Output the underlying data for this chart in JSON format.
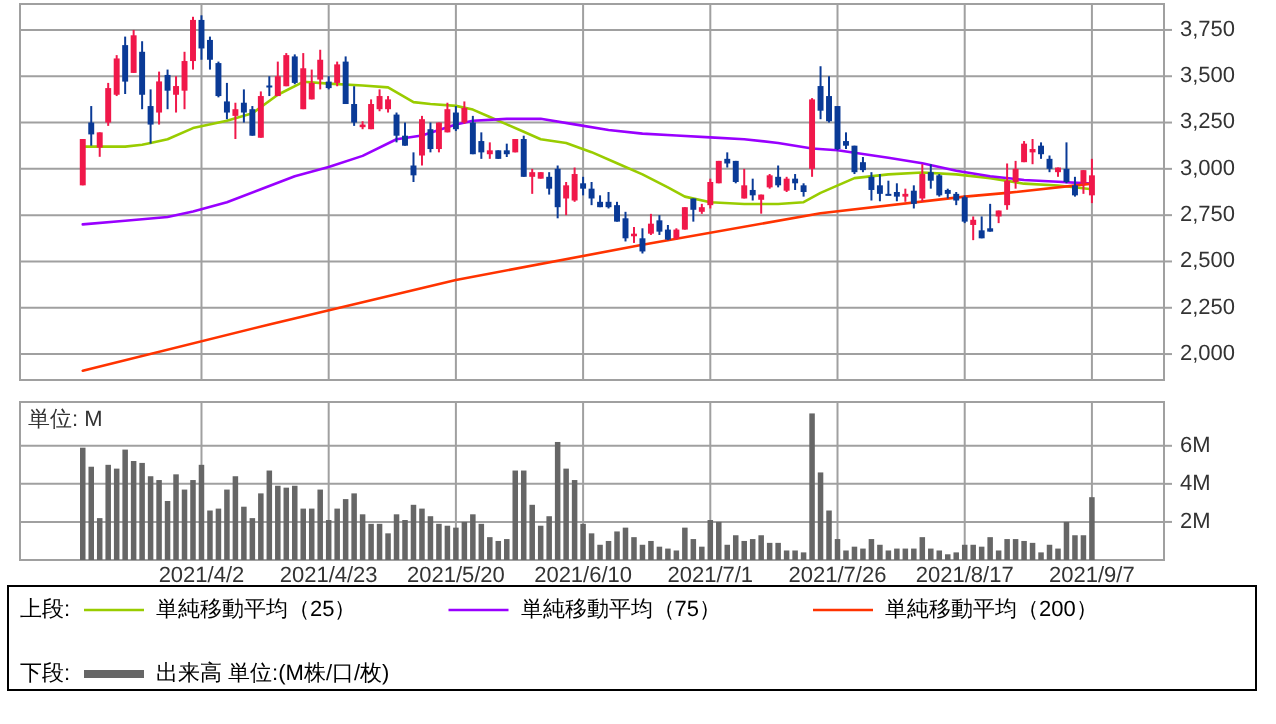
{
  "chart_data": [
    {
      "type": "candlestick",
      "legend": "bottom",
      "legend_title": "上段:",
      "grid": true,
      "tick_labels": "y",
      "categories": [
        null,
        null,
        null,
        null,
        null,
        null,
        null,
        null,
        null,
        null,
        null,
        null,
        null,
        null,
        "2021/4/2",
        null,
        null,
        null,
        null,
        null,
        null,
        null,
        null,
        null,
        null,
        null,
        null,
        null,
        null,
        "2021/4/23",
        null,
        null,
        null,
        null,
        null,
        null,
        null,
        null,
        null,
        null,
        null,
        null,
        null,
        null,
        "2021/5/20",
        null,
        null,
        null,
        null,
        null,
        null,
        null,
        null,
        null,
        null,
        null,
        null,
        null,
        null,
        "2021/6/10",
        null,
        null,
        null,
        null,
        null,
        null,
        null,
        null,
        null,
        null,
        null,
        null,
        null,
        null,
        "2021/7/1",
        null,
        null,
        null,
        null,
        null,
        null,
        null,
        null,
        null,
        null,
        null,
        null,
        null,
        null,
        "2021/7/26",
        null,
        null,
        null,
        null,
        null,
        null,
        null,
        null,
        null,
        null,
        null,
        null,
        null,
        null,
        "2021/8/17",
        null,
        null,
        null,
        null,
        null,
        null,
        null,
        null,
        null,
        null,
        null,
        null,
        null,
        null,
        "2021/9/7"
      ],
      "ylim": [
        1860,
        3890
      ],
      "yticks": [
        {
          "value": 2000,
          "label": "2,000"
        },
        {
          "value": 2250,
          "label": "2,250"
        },
        {
          "value": 2500,
          "label": "2,500"
        },
        {
          "value": 2750,
          "label": "2,750"
        },
        {
          "value": 3000,
          "label": "3,000"
        },
        {
          "value": 3250,
          "label": "3,250"
        },
        {
          "value": 3500,
          "label": "3,500"
        },
        {
          "value": 3750,
          "label": "3,750"
        }
      ],
      "ohlc": [
        [
          2911,
          3161,
          2911,
          3161
        ],
        [
          3250,
          3339,
          3125,
          3186
        ],
        [
          3115,
          3197,
          3065,
          3197
        ],
        [
          3250,
          3464,
          3232,
          3436
        ],
        [
          3400,
          3614,
          3393,
          3596
        ],
        [
          3668,
          3714,
          3404,
          3471
        ],
        [
          3518,
          3750,
          3518,
          3721
        ],
        [
          3632,
          3689,
          3322,
          3400
        ],
        [
          3339,
          3429,
          3136,
          3239
        ],
        [
          3304,
          3525,
          3239,
          3472
        ],
        [
          3507,
          3536,
          3322,
          3422
        ],
        [
          3400,
          3500,
          3304,
          3447
        ],
        [
          3422,
          3632,
          3322,
          3582
        ],
        [
          3582,
          3821,
          3536,
          3804
        ],
        [
          3804,
          3829,
          3589,
          3650
        ],
        [
          3696,
          3714,
          3536,
          3589
        ],
        [
          3571,
          3579,
          3386,
          3393
        ],
        [
          3364,
          3464,
          3268,
          3304
        ],
        [
          3286,
          3357,
          3161,
          3322
        ],
        [
          3357,
          3429,
          3250,
          3304
        ],
        [
          3322,
          3339,
          3179,
          3179
        ],
        [
          3168,
          3418,
          3168,
          3393
        ],
        [
          3450,
          3500,
          3393,
          3446
        ],
        [
          3393,
          3579,
          3393,
          3500
        ],
        [
          3446,
          3625,
          3446,
          3614
        ],
        [
          3607,
          3618,
          3457,
          3464
        ],
        [
          3322,
          3625,
          3322,
          3543
        ],
        [
          3375,
          3536,
          3375,
          3464
        ],
        [
          3482,
          3643,
          3429,
          3589
        ],
        [
          3471,
          3500,
          3429,
          3436
        ],
        [
          3464,
          3579,
          3446,
          3564
        ],
        [
          3579,
          3607,
          3350,
          3350
        ],
        [
          3350,
          3446,
          3232,
          3250
        ],
        [
          3225,
          3257,
          3214,
          3239
        ],
        [
          3214,
          3375,
          3214,
          3350
        ],
        [
          3322,
          3429,
          3311,
          3393
        ],
        [
          3322,
          3393,
          3304,
          3375
        ],
        [
          3293,
          3304,
          3143,
          3179
        ],
        [
          3179,
          3250,
          3125,
          3125
        ],
        [
          3018,
          3089,
          2929,
          2965
        ],
        [
          3072,
          3286,
          3018,
          3268
        ],
        [
          3214,
          3250,
          3089,
          3107
        ],
        [
          3107,
          3250,
          3089,
          3250
        ],
        [
          3197,
          3357,
          3197,
          3322
        ],
        [
          3304,
          3339,
          3204,
          3214
        ],
        [
          3250,
          3364,
          3243,
          3329
        ],
        [
          3250,
          3286,
          3079,
          3079
        ],
        [
          3150,
          3197,
          3054,
          3089
        ],
        [
          3079,
          3143,
          3054,
          3100
        ],
        [
          3100,
          3100,
          3054,
          3054
        ],
        [
          3100,
          3136,
          3064,
          3079
        ],
        [
          3089,
          3161,
          3089,
          3161
        ],
        [
          3161,
          3179,
          2957,
          2957
        ],
        [
          2957,
          3000,
          2865,
          2982
        ],
        [
          2947,
          2982,
          2947,
          2982
        ],
        [
          2957,
          2982,
          2861,
          2893
        ],
        [
          3000,
          3018,
          2733,
          2793
        ],
        [
          2840,
          2929,
          2750,
          2911
        ],
        [
          2829,
          3007,
          2822,
          2972
        ],
        [
          2922,
          2957,
          2857,
          2893
        ],
        [
          2893,
          2929,
          2804,
          2840
        ],
        [
          2822,
          2857,
          2793,
          2793
        ],
        [
          2822,
          2875,
          2786,
          2793
        ],
        [
          2804,
          2822,
          2715,
          2715
        ],
        [
          2733,
          2768,
          2608,
          2625
        ],
        [
          2636,
          2686,
          2600,
          2650
        ],
        [
          2625,
          2679,
          2543,
          2554
        ],
        [
          2650,
          2757,
          2643,
          2704
        ],
        [
          2722,
          2750,
          2643,
          2661
        ],
        [
          2672,
          2697,
          2615,
          2618
        ],
        [
          2625,
          2679,
          2618,
          2672
        ],
        [
          2672,
          2793,
          2672,
          2793
        ],
        [
          2840,
          2840,
          2715,
          2779
        ],
        [
          2768,
          2811,
          2757,
          2793
        ],
        [
          2804,
          2947,
          2786,
          2929
        ],
        [
          2922,
          3043,
          2922,
          3043
        ],
        [
          3054,
          3089,
          3007,
          3029
        ],
        [
          3043,
          3043,
          2922,
          2929
        ],
        [
          2840,
          3000,
          2840,
          2911
        ],
        [
          2886,
          2947,
          2829,
          2857
        ],
        [
          2833,
          2861,
          2758,
          2861
        ],
        [
          2900,
          2972,
          2893,
          2965
        ],
        [
          2957,
          3018,
          2900,
          2911
        ],
        [
          2882,
          2957,
          2875,
          2947
        ],
        [
          2947,
          2972,
          2886,
          2922
        ],
        [
          2911,
          2922,
          2850,
          2875
        ],
        [
          3000,
          3382,
          2957,
          3375
        ],
        [
          3447,
          3554,
          3268,
          3314
        ],
        [
          3393,
          3500,
          3250,
          3257
        ],
        [
          3339,
          3339,
          3100,
          3107
        ],
        [
          3150,
          3197,
          3107,
          3125
        ],
        [
          3125,
          3125,
          2972,
          2982
        ],
        [
          3036,
          3064,
          2982,
          2993
        ],
        [
          2957,
          2982,
          2829,
          2886
        ],
        [
          2911,
          2972,
          2825,
          2865
        ],
        [
          2865,
          2936,
          2857,
          2857
        ],
        [
          2875,
          2922,
          2825,
          2850
        ],
        [
          2850,
          2893,
          2822,
          2865
        ],
        [
          2882,
          2911,
          2786,
          2811
        ],
        [
          2840,
          3025,
          2822,
          2972
        ],
        [
          2982,
          3025,
          2893,
          2936
        ],
        [
          2965,
          2972,
          2850,
          2857
        ],
        [
          2886,
          2893,
          2840,
          2865
        ],
        [
          2865,
          2875,
          2804,
          2829
        ],
        [
          2847,
          2857,
          2707,
          2715
        ],
        [
          2697,
          2743,
          2615,
          2725
        ],
        [
          2668,
          2743,
          2625,
          2625
        ],
        [
          2679,
          2811,
          2661,
          2661
        ],
        [
          2743,
          2775,
          2707,
          2775
        ],
        [
          2804,
          3029,
          2779,
          2936
        ],
        [
          2929,
          3043,
          2893,
          3000
        ],
        [
          3036,
          3150,
          3036,
          3136
        ],
        [
          3089,
          3161,
          3025,
          3107
        ],
        [
          3125,
          3143,
          3054,
          3079
        ],
        [
          3054,
          3072,
          2982,
          3000
        ],
        [
          2982,
          3007,
          2957,
          3007
        ],
        [
          3000,
          3143,
          2922,
          2929
        ],
        [
          2911,
          2957,
          2850,
          2857
        ],
        [
          2922,
          2993,
          2865,
          2993
        ],
        [
          2857,
          3054,
          2815,
          2965
        ]
      ],
      "series": [
        {
          "name": "単純移動平均（25）",
          "type": "line",
          "color": "#99cc00",
          "values": [
            3120,
            null,
            null,
            null,
            null,
            3120,
            null,
            3130,
            3140,
            null,
            3160,
            null,
            null,
            3220,
            null,
            null,
            null,
            3260,
            null,
            null,
            3300,
            null,
            null,
            3400,
            null,
            null,
            3470,
            null,
            null,
            3460,
            null,
            null,
            null,
            3450,
            null,
            null,
            3440,
            null,
            null,
            3360,
            null,
            3350,
            null,
            null,
            3340,
            null,
            3320,
            null,
            3280,
            null,
            3240,
            null,
            3200,
            null,
            3160,
            null,
            null,
            3140,
            null,
            null,
            3090,
            null,
            null,
            3030,
            null,
            null,
            2970,
            null,
            null,
            2900,
            null,
            2850,
            null,
            null,
            2820,
            null,
            null,
            null,
            2810,
            null,
            null,
            null,
            2810,
            null,
            null,
            2820,
            null,
            2870,
            null,
            null,
            null,
            2950,
            null,
            null,
            null,
            2970,
            null,
            null,
            null,
            2980,
            null,
            null,
            null,
            2970,
            null,
            null,
            null,
            2950,
            null,
            null,
            null,
            2920,
            null,
            null,
            null,
            2910,
            null,
            null,
            null,
            2890
          ]
        },
        {
          "name": "単純移動平均（75）",
          "type": "line",
          "color": "#9900ff",
          "values": [
            2700,
            null,
            null,
            null,
            null,
            2720,
            null,
            null,
            null,
            null,
            2740,
            null,
            null,
            2770,
            null,
            null,
            null,
            2820,
            null,
            null,
            null,
            2890,
            null,
            null,
            null,
            2960,
            null,
            null,
            null,
            3010,
            null,
            null,
            null,
            3070,
            null,
            null,
            null,
            3160,
            null,
            null,
            3180,
            null,
            null,
            null,
            3240,
            null,
            3260,
            null,
            null,
            null,
            3270,
            null,
            null,
            null,
            3270,
            null,
            null,
            null,
            3240,
            null,
            null,
            null,
            3210,
            null,
            null,
            null,
            3190,
            null,
            null,
            null,
            3180,
            null,
            null,
            null,
            3170,
            null,
            null,
            null,
            3160,
            null,
            null,
            null,
            3140,
            null,
            null,
            null,
            3110,
            null,
            null,
            3100,
            null,
            null,
            null,
            null,
            null,
            3060,
            null,
            null,
            null,
            3030,
            null,
            null,
            null,
            2990,
            null,
            null,
            null,
            2960,
            null,
            null,
            null,
            2940,
            null,
            null,
            null,
            2930,
            null,
            null,
            null,
            2920
          ]
        },
        {
          "name": "単純移動平均（200）",
          "type": "line",
          "color": "#ff3300",
          "values": [
            1910,
            null,
            null,
            null,
            null,
            null,
            null,
            null,
            null,
            null,
            null,
            null,
            null,
            null,
            null,
            null,
            null,
            null,
            null,
            null,
            null,
            null,
            2160,
            null,
            null,
            null,
            null,
            null,
            null,
            null,
            null,
            null,
            null,
            null,
            null,
            null,
            null,
            null,
            null,
            null,
            null,
            null,
            null,
            null,
            2400,
            null,
            null,
            null,
            null,
            null,
            null,
            null,
            null,
            null,
            null,
            null,
            null,
            null,
            null,
            null,
            null,
            null,
            null,
            null,
            null,
            null,
            2590,
            null,
            null,
            null,
            null,
            null,
            null,
            null,
            null,
            null,
            null,
            null,
            null,
            null,
            null,
            null,
            null,
            null,
            null,
            null,
            null,
            2760,
            null,
            null,
            null,
            null,
            null,
            null,
            null,
            null,
            null,
            null,
            null,
            null,
            null,
            null,
            null,
            null,
            2850,
            null,
            null,
            null,
            null,
            2870,
            null,
            null,
            null,
            null,
            null,
            null,
            null,
            null,
            null,
            2920
          ]
        }
      ]
    },
    {
      "type": "bar",
      "legend": "bottom",
      "legend_title": "下段:",
      "grid": true,
      "annotations": [
        "単位: M"
      ],
      "categories": [
        null,
        null,
        null,
        null,
        null,
        null,
        null,
        null,
        null,
        null,
        null,
        null,
        null,
        null,
        "2021/4/2",
        null,
        null,
        null,
        null,
        null,
        null,
        null,
        null,
        null,
        null,
        null,
        null,
        null,
        null,
        "2021/4/23",
        null,
        null,
        null,
        null,
        null,
        null,
        null,
        null,
        null,
        null,
        null,
        null,
        null,
        null,
        "2021/5/20",
        null,
        null,
        null,
        null,
        null,
        null,
        null,
        null,
        null,
        null,
        null,
        null,
        null,
        null,
        "2021/6/10",
        null,
        null,
        null,
        null,
        null,
        null,
        null,
        null,
        null,
        null,
        null,
        null,
        null,
        null,
        "2021/7/1",
        null,
        null,
        null,
        null,
        null,
        null,
        null,
        null,
        null,
        null,
        null,
        null,
        null,
        null,
        "2021/7/26",
        null,
        null,
        null,
        null,
        null,
        null,
        null,
        null,
        null,
        null,
        null,
        null,
        null,
        null,
        "2021/8/17",
        null,
        null,
        null,
        null,
        null,
        null,
        null,
        null,
        null,
        null,
        null,
        null,
        null,
        null,
        "2021/9/7"
      ],
      "ylim": [
        0,
        8.3
      ],
      "yticks": [
        {
          "value": 2,
          "label": "2M"
        },
        {
          "value": 4,
          "label": "4M"
        },
        {
          "value": 6,
          "label": "6M"
        }
      ],
      "series": [
        {
          "name": "出来高 単位:(M株/口/枚)",
          "color": "#666666",
          "values": [
            5.9,
            4.9,
            2.2,
            5.0,
            4.8,
            5.8,
            5.2,
            5.1,
            4.4,
            4.2,
            3.1,
            4.5,
            3.7,
            4.2,
            5.0,
            2.6,
            2.7,
            3.7,
            4.4,
            2.8,
            2.2,
            3.5,
            4.7,
            3.9,
            3.8,
            3.9,
            2.7,
            2.7,
            3.7,
            2.1,
            2.7,
            3.2,
            3.5,
            2.4,
            1.9,
            1.9,
            1.4,
            2.4,
            2.1,
            2.9,
            2.7,
            2.3,
            1.9,
            1.8,
            1.7,
            2.0,
            2.4,
            1.9,
            1.2,
            1.0,
            1.1,
            4.7,
            4.7,
            2.9,
            1.8,
            2.3,
            6.2,
            4.8,
            4.2,
            1.9,
            1.4,
            0.8,
            1.0,
            1.5,
            1.7,
            1.2,
            0.8,
            1.0,
            0.7,
            0.6,
            0.5,
            1.7,
            1.1,
            0.7,
            2.1,
            2.0,
            0.8,
            1.3,
            1.0,
            1.1,
            1.3,
            0.9,
            0.9,
            0.5,
            0.5,
            0.4,
            7.7,
            4.6,
            2.6,
            1.1,
            0.5,
            0.7,
            0.6,
            1.1,
            0.8,
            0.5,
            0.6,
            0.6,
            0.6,
            1.2,
            0.6,
            0.5,
            0.3,
            0.4,
            0.8,
            0.8,
            0.7,
            1.2,
            0.5,
            1.1,
            1.1,
            1.0,
            0.9,
            0.4,
            0.8,
            0.6,
            2.0,
            1.3,
            1.3,
            3.3
          ]
        }
      ]
    }
  ]
}
